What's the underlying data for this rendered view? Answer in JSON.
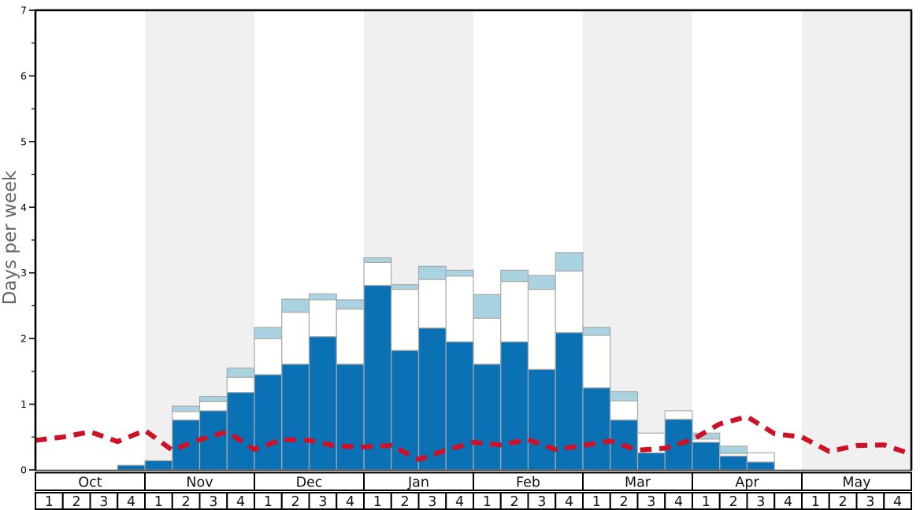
{
  "chart_data": {
    "type": "bar",
    "subtype": "stacked-bars-with-dashed-line",
    "title": "",
    "ylabel": "Days per week",
    "ylim": [
      0,
      7
    ],
    "y_major_ticks": [
      0,
      1,
      2,
      3,
      4,
      5,
      6,
      7
    ],
    "y_minor_tick_step": 0.5,
    "grid": false,
    "legend_position": "none",
    "months": [
      "Oct",
      "Nov",
      "Dec",
      "Jan",
      "Feb",
      "Mar",
      "Apr",
      "May"
    ],
    "week_labels": [
      "1",
      "2",
      "3",
      "4"
    ],
    "categories": [
      "Oct-1",
      "Oct-2",
      "Oct-3",
      "Oct-4",
      "Nov-1",
      "Nov-2",
      "Nov-3",
      "Nov-4",
      "Dec-1",
      "Dec-2",
      "Dec-3",
      "Dec-4",
      "Jan-1",
      "Jan-2",
      "Jan-3",
      "Jan-4",
      "Feb-1",
      "Feb-2",
      "Feb-3",
      "Feb-4",
      "Mar-1",
      "Mar-2",
      "Mar-3",
      "Mar-4",
      "Apr-1",
      "Apr-2",
      "Apr-3",
      "Apr-4",
      "May-1",
      "May-2",
      "May-3",
      "May-4"
    ],
    "series": [
      {
        "name": "days-primary-dark-blue",
        "color": "#0a71b5",
        "values": [
          0,
          0,
          0,
          0.07,
          0.14,
          0.76,
          0.9,
          1.18,
          1.45,
          1.61,
          2.03,
          1.61,
          2.81,
          1.82,
          2.16,
          1.95,
          1.61,
          1.95,
          1.53,
          2.09,
          1.25,
          0.76,
          0.26,
          0.77,
          0.42,
          0.21,
          0.12,
          0,
          0,
          0,
          0,
          0
        ]
      },
      {
        "name": "days-secondary-white",
        "color": "#fffffe",
        "values": [
          0,
          0,
          0,
          0,
          0,
          0.13,
          0.14,
          0.23,
          0.55,
          0.79,
          0.56,
          0.84,
          0.35,
          0.93,
          0.74,
          1.0,
          0.7,
          0.92,
          1.22,
          0.94,
          0.8,
          0.29,
          0.3,
          0.13,
          0.05,
          0.04,
          0.14,
          0,
          0,
          0,
          0,
          0
        ]
      },
      {
        "name": "days-tertiary-light-blue",
        "color": "#aad3e2",
        "values": [
          0,
          0,
          0,
          0,
          0,
          0.08,
          0.08,
          0.14,
          0.17,
          0.2,
          0.09,
          0.14,
          0.07,
          0.07,
          0.2,
          0.09,
          0.36,
          0.17,
          0.21,
          0.28,
          0.12,
          0.14,
          0,
          0,
          0.09,
          0.11,
          0,
          0,
          0,
          0,
          0,
          0
        ]
      }
    ],
    "line_series": {
      "name": "average-red-dashed-line",
      "color": "#ce1126",
      "dashed": true,
      "x_anchor": "week-start-plus-right-edge",
      "values": [
        0.45,
        0.5,
        0.58,
        0.43,
        0.6,
        0.3,
        0.46,
        0.58,
        0.31,
        0.46,
        0.45,
        0.36,
        0.35,
        0.37,
        0.16,
        0.3,
        0.42,
        0.38,
        0.46,
        0.31,
        0.37,
        0.44,
        0.3,
        0.33,
        0.46,
        0.7,
        0.81,
        0.55,
        0.5,
        0.28,
        0.37,
        0.38,
        0.24
      ]
    },
    "background": {
      "shaded_months": [
        "Nov",
        "Jan",
        "Mar",
        "May"
      ],
      "band_color": "#f0f0f0",
      "plain_color": "#ffffff"
    },
    "style": {
      "bar_border_color": "#aaaaaa",
      "frame_color": "#000000",
      "baseline_color": "#333333",
      "axis_table_border_color": "#000000",
      "ylabel_color": "#666666",
      "tick_label_color": "#000000",
      "month_label_color": "#111111"
    }
  }
}
